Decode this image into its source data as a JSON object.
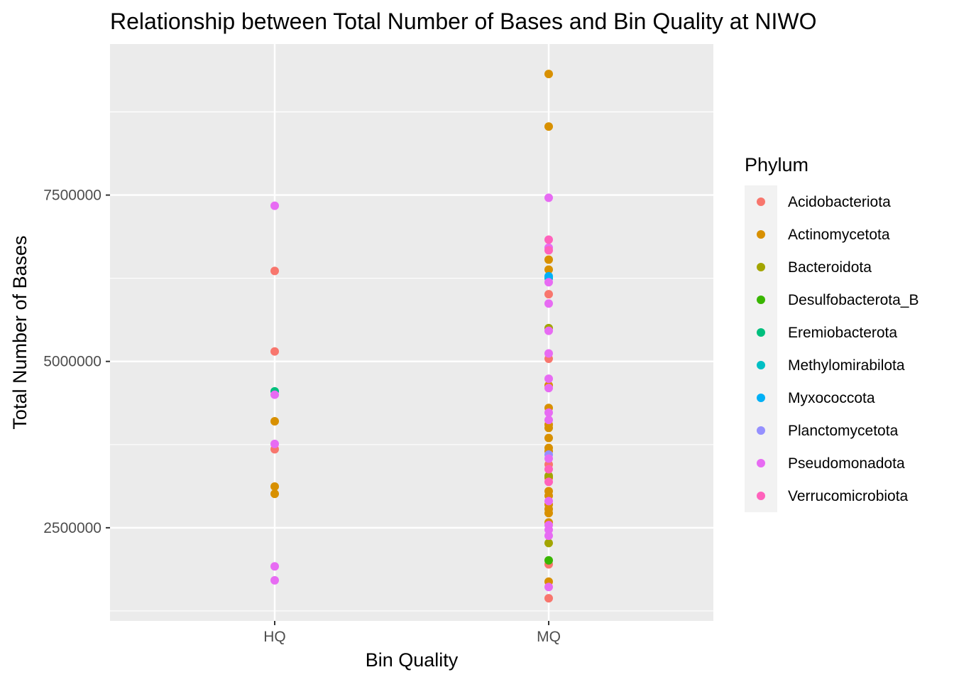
{
  "chart_data": {
    "type": "scatter",
    "title": "Relationship between Total Number of Bases and Bin Quality at NIWO",
    "xlabel": "Bin Quality",
    "ylabel": "Total Number of Bases",
    "categories": [
      "HQ",
      "MQ"
    ],
    "ylim": [
      1100000,
      9770000
    ],
    "yticks": [
      2500000,
      5000000,
      7500000
    ],
    "ytick_labels": [
      "2500000",
      "5000000",
      "7500000"
    ],
    "grid": true,
    "legend": {
      "title": "Phylum",
      "position": "right"
    },
    "series": [
      {
        "name": "Acidobacteriota",
        "color": "#F8766D",
        "points": [
          {
            "x": "HQ",
            "y": 6360000
          },
          {
            "x": "HQ",
            "y": 5150000
          },
          {
            "x": "HQ",
            "y": 3680000
          },
          {
            "x": "MQ",
            "y": 6010000
          },
          {
            "x": "MQ",
            "y": 5040000
          },
          {
            "x": "MQ",
            "y": 3450000
          },
          {
            "x": "MQ",
            "y": 1950000
          },
          {
            "x": "MQ",
            "y": 1440000
          }
        ]
      },
      {
        "name": "Actinomycetota",
        "color": "#D89000",
        "points": [
          {
            "x": "HQ",
            "y": 4100000
          },
          {
            "x": "HQ",
            "y": 3120000
          },
          {
            "x": "HQ",
            "y": 3010000
          },
          {
            "x": "MQ",
            "y": 9320000
          },
          {
            "x": "MQ",
            "y": 8530000
          },
          {
            "x": "MQ",
            "y": 6530000
          },
          {
            "x": "MQ",
            "y": 6380000
          },
          {
            "x": "MQ",
            "y": 4640000
          },
          {
            "x": "MQ",
            "y": 4300000
          },
          {
            "x": "MQ",
            "y": 4050000
          },
          {
            "x": "MQ",
            "y": 4000000
          },
          {
            "x": "MQ",
            "y": 3850000
          },
          {
            "x": "MQ",
            "y": 3700000
          },
          {
            "x": "MQ",
            "y": 3650000
          },
          {
            "x": "MQ",
            "y": 3250000
          },
          {
            "x": "MQ",
            "y": 3050000
          },
          {
            "x": "MQ",
            "y": 2980000
          },
          {
            "x": "MQ",
            "y": 2850000
          },
          {
            "x": "MQ",
            "y": 2780000
          },
          {
            "x": "MQ",
            "y": 2720000
          },
          {
            "x": "MQ",
            "y": 2580000
          },
          {
            "x": "MQ",
            "y": 1690000
          }
        ]
      },
      {
        "name": "Bacteroidota",
        "color": "#A3A500",
        "points": [
          {
            "x": "MQ",
            "y": 5500000
          },
          {
            "x": "MQ",
            "y": 3280000
          },
          {
            "x": "MQ",
            "y": 2270000
          }
        ]
      },
      {
        "name": "Desulfobacterota_B",
        "color": "#39B600",
        "points": [
          {
            "x": "MQ",
            "y": 2010000
          }
        ]
      },
      {
        "name": "Eremiobacterota",
        "color": "#00BF7D",
        "points": [
          {
            "x": "HQ",
            "y": 4550000
          }
        ]
      },
      {
        "name": "Methylomirabilota",
        "color": "#00BFC4",
        "points": [
          {
            "x": "MQ",
            "y": 6250000
          }
        ]
      },
      {
        "name": "Myxococcota",
        "color": "#00B0F6",
        "points": [
          {
            "x": "MQ",
            "y": 6280000
          }
        ]
      },
      {
        "name": "Planctomycetota",
        "color": "#9590FF",
        "points": [
          {
            "x": "MQ",
            "y": 3600000
          }
        ]
      },
      {
        "name": "Pseudomonadota",
        "color": "#E76BF3",
        "points": [
          {
            "x": "HQ",
            "y": 7340000
          },
          {
            "x": "HQ",
            "y": 4500000
          },
          {
            "x": "HQ",
            "y": 3760000
          },
          {
            "x": "HQ",
            "y": 1920000
          },
          {
            "x": "HQ",
            "y": 1710000
          },
          {
            "x": "MQ",
            "y": 7460000
          },
          {
            "x": "MQ",
            "y": 6710000
          },
          {
            "x": "MQ",
            "y": 6190000
          },
          {
            "x": "MQ",
            "y": 5870000
          },
          {
            "x": "MQ",
            "y": 5460000
          },
          {
            "x": "MQ",
            "y": 5120000
          },
          {
            "x": "MQ",
            "y": 4740000
          },
          {
            "x": "MQ",
            "y": 4600000
          },
          {
            "x": "MQ",
            "y": 4230000
          },
          {
            "x": "MQ",
            "y": 4120000
          },
          {
            "x": "MQ",
            "y": 3540000
          },
          {
            "x": "MQ",
            "y": 2900000
          },
          {
            "x": "MQ",
            "y": 2540000
          },
          {
            "x": "MQ",
            "y": 2470000
          },
          {
            "x": "MQ",
            "y": 2380000
          },
          {
            "x": "MQ",
            "y": 1610000
          }
        ]
      },
      {
        "name": "Verrucomicrobiota",
        "color": "#FF62BC",
        "points": [
          {
            "x": "MQ",
            "y": 6830000
          },
          {
            "x": "MQ",
            "y": 6670000
          },
          {
            "x": "MQ",
            "y": 3380000
          },
          {
            "x": "MQ",
            "y": 3190000
          }
        ]
      }
    ]
  }
}
